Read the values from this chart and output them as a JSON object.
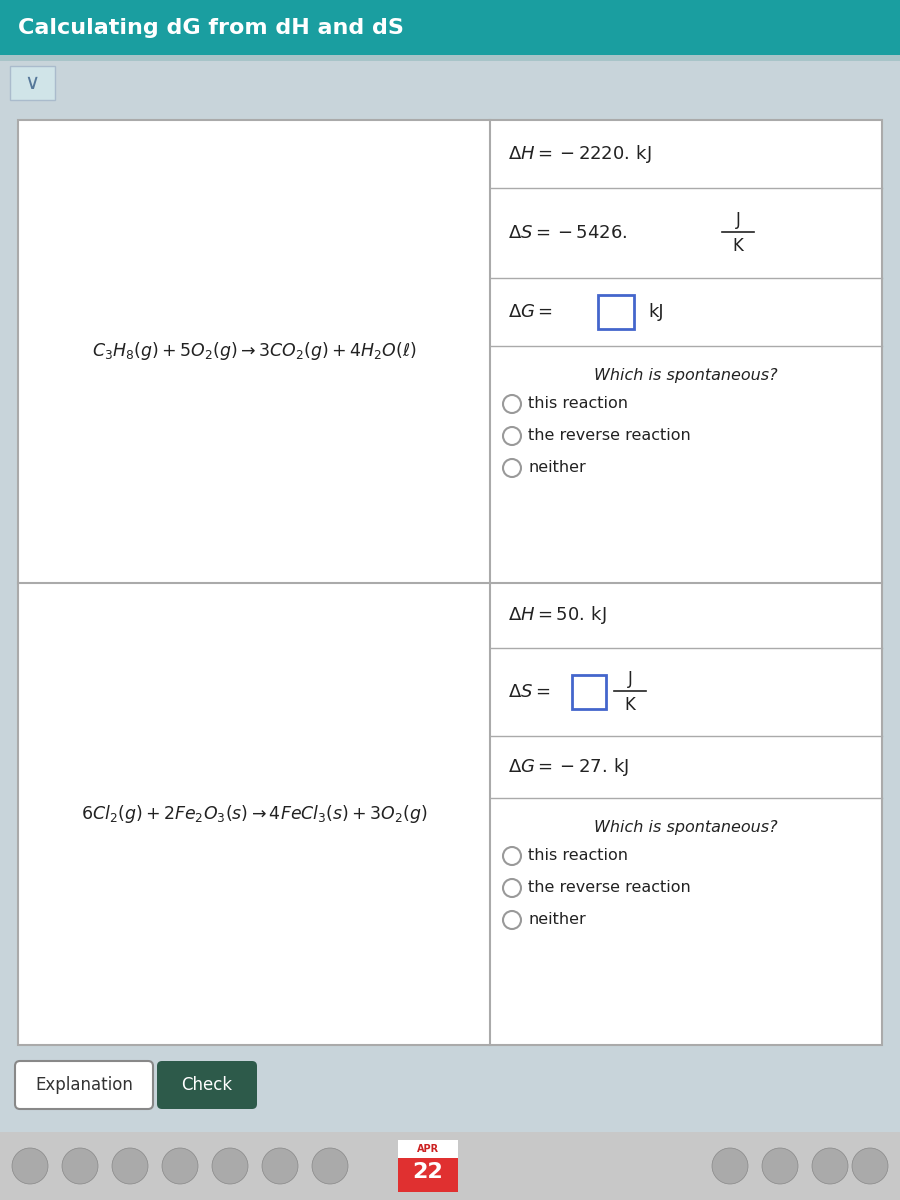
{
  "title": "Calculating dG from dH and dS",
  "title_bg": "#1a9ea0",
  "title_color": "#ffffff",
  "page_bg": "#c8d4da",
  "table_bg": "#ffffff",
  "border_color": "#aaaaaa",
  "text_color": "#222222",
  "reaction1_math": "$C_3H_8(g) + 5O_2(g) \\rightarrow 3CO_2(g) + 4H_2O(\\ell)$",
  "reaction2_math": "$6Cl_2(g) + 2Fe_2O_3(s) \\rightarrow 4FeCl_3(s) + 3O_2(g)$",
  "dH1_text": "$\\Delta H = -2220.\\,\\mathrm{kJ}$",
  "dS1_text": "$\\Delta S = -5426.\\,$",
  "dG1_text": "$\\Delta G = $",
  "dG1_unit": "kJ",
  "dH2_text": "$\\Delta H = 50.\\,\\mathrm{kJ}$",
  "dS2_text": "$\\Delta S = $",
  "dG2_text": "$\\Delta G = -27.\\,\\mathrm{kJ}$",
  "which_text": "Which is spontaneous?",
  "options": [
    "this reaction",
    "the reverse reaction",
    "neither"
  ],
  "explanation_btn": "Explanation",
  "check_btn": "Check",
  "check_btn_bg": "#2d5a4a",
  "input_box_color": "#4466cc",
  "frac_num": "J",
  "frac_den": "K"
}
